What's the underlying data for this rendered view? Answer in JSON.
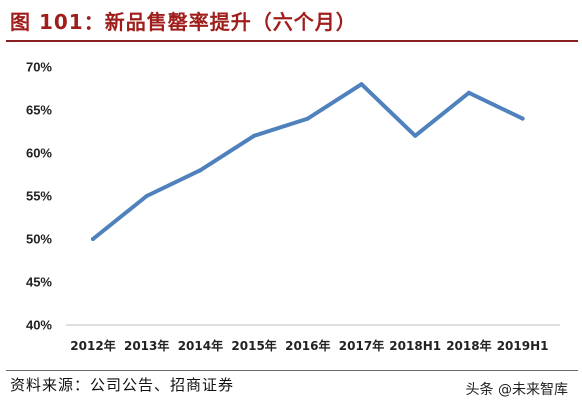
{
  "figure": {
    "title": "图 101：新品售罄率提升（六个月）",
    "source": "资料来源：公司公告、招商证券",
    "watermark": "头条 @未来智库"
  },
  "colors": {
    "title": "#9f1e1b",
    "line": "#4f81bd",
    "tick_text": "#222222"
  },
  "chart_data": {
    "type": "line",
    "categories": [
      "2012年",
      "2013年",
      "2014年",
      "2015年",
      "2016年",
      "2017年",
      "2018H1",
      "2018年",
      "2019H1"
    ],
    "series": [
      {
        "values": [
          50,
          55,
          58,
          62,
          64,
          68,
          62,
          67,
          64
        ]
      }
    ],
    "y_ticks": [
      "40%",
      "45%",
      "50%",
      "55%",
      "60%",
      "65%",
      "70%"
    ],
    "ylim": [
      40,
      70
    ],
    "grid": false,
    "legend": "none"
  }
}
